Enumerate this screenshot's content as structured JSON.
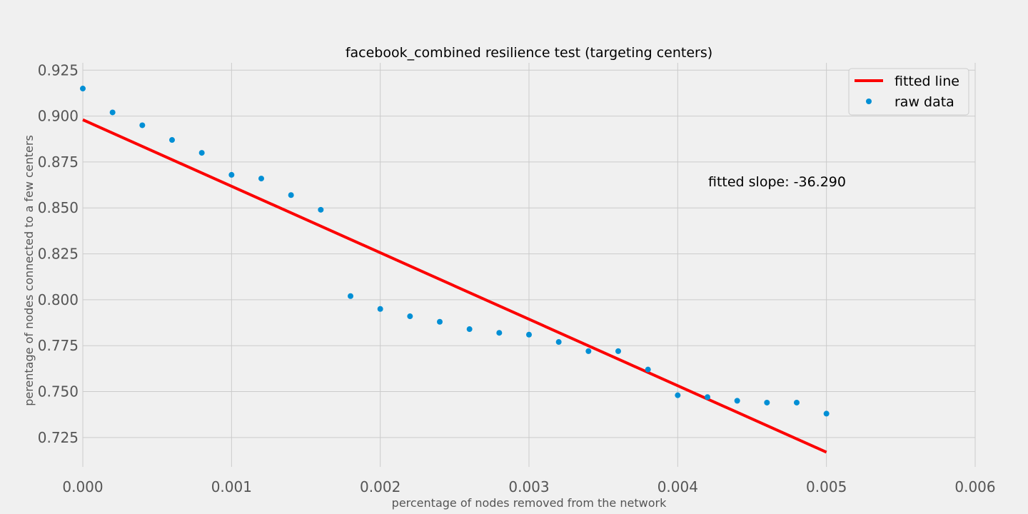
{
  "chart_data": {
    "type": "scatter",
    "title": "facebook_combined resilience test (targeting centers)",
    "xlabel": "percentage of nodes removed from the network",
    "ylabel": "perentage of nodes connected to a few centers",
    "xlim": [
      0.0,
      0.006
    ],
    "ylim": [
      0.709,
      0.929
    ],
    "x_ticks": [
      "0.000",
      "0.001",
      "0.002",
      "0.003",
      "0.004",
      "0.005",
      "0.006"
    ],
    "y_ticks": [
      "0.725",
      "0.750",
      "0.775",
      "0.800",
      "0.825",
      "0.850",
      "0.875",
      "0.900",
      "0.925"
    ],
    "grid": true,
    "legend_position": "top-right",
    "series": [
      {
        "name": "raw data",
        "kind": "scatter",
        "color": "#008fd5",
        "x": [
          0.0,
          0.0002,
          0.0004,
          0.0006,
          0.0008,
          0.001,
          0.0012,
          0.0014,
          0.0016,
          0.0018,
          0.002,
          0.0022,
          0.0024,
          0.0026,
          0.0028,
          0.003,
          0.0032,
          0.0034,
          0.0036,
          0.0038,
          0.004,
          0.0042,
          0.0044,
          0.0046,
          0.0048,
          0.005
        ],
        "y": [
          0.915,
          0.902,
          0.895,
          0.887,
          0.88,
          0.868,
          0.866,
          0.857,
          0.849,
          0.802,
          0.795,
          0.791,
          0.788,
          0.784,
          0.782,
          0.781,
          0.777,
          0.772,
          0.772,
          0.762,
          0.748,
          0.747,
          0.745,
          0.744,
          0.744,
          0.738
        ]
      },
      {
        "name": "fitted line",
        "kind": "line",
        "color": "#fc0000",
        "x": [
          0.0,
          0.005
        ],
        "y": [
          0.898,
          0.717
        ]
      }
    ],
    "annotation": "fitted slope: -36.290"
  }
}
